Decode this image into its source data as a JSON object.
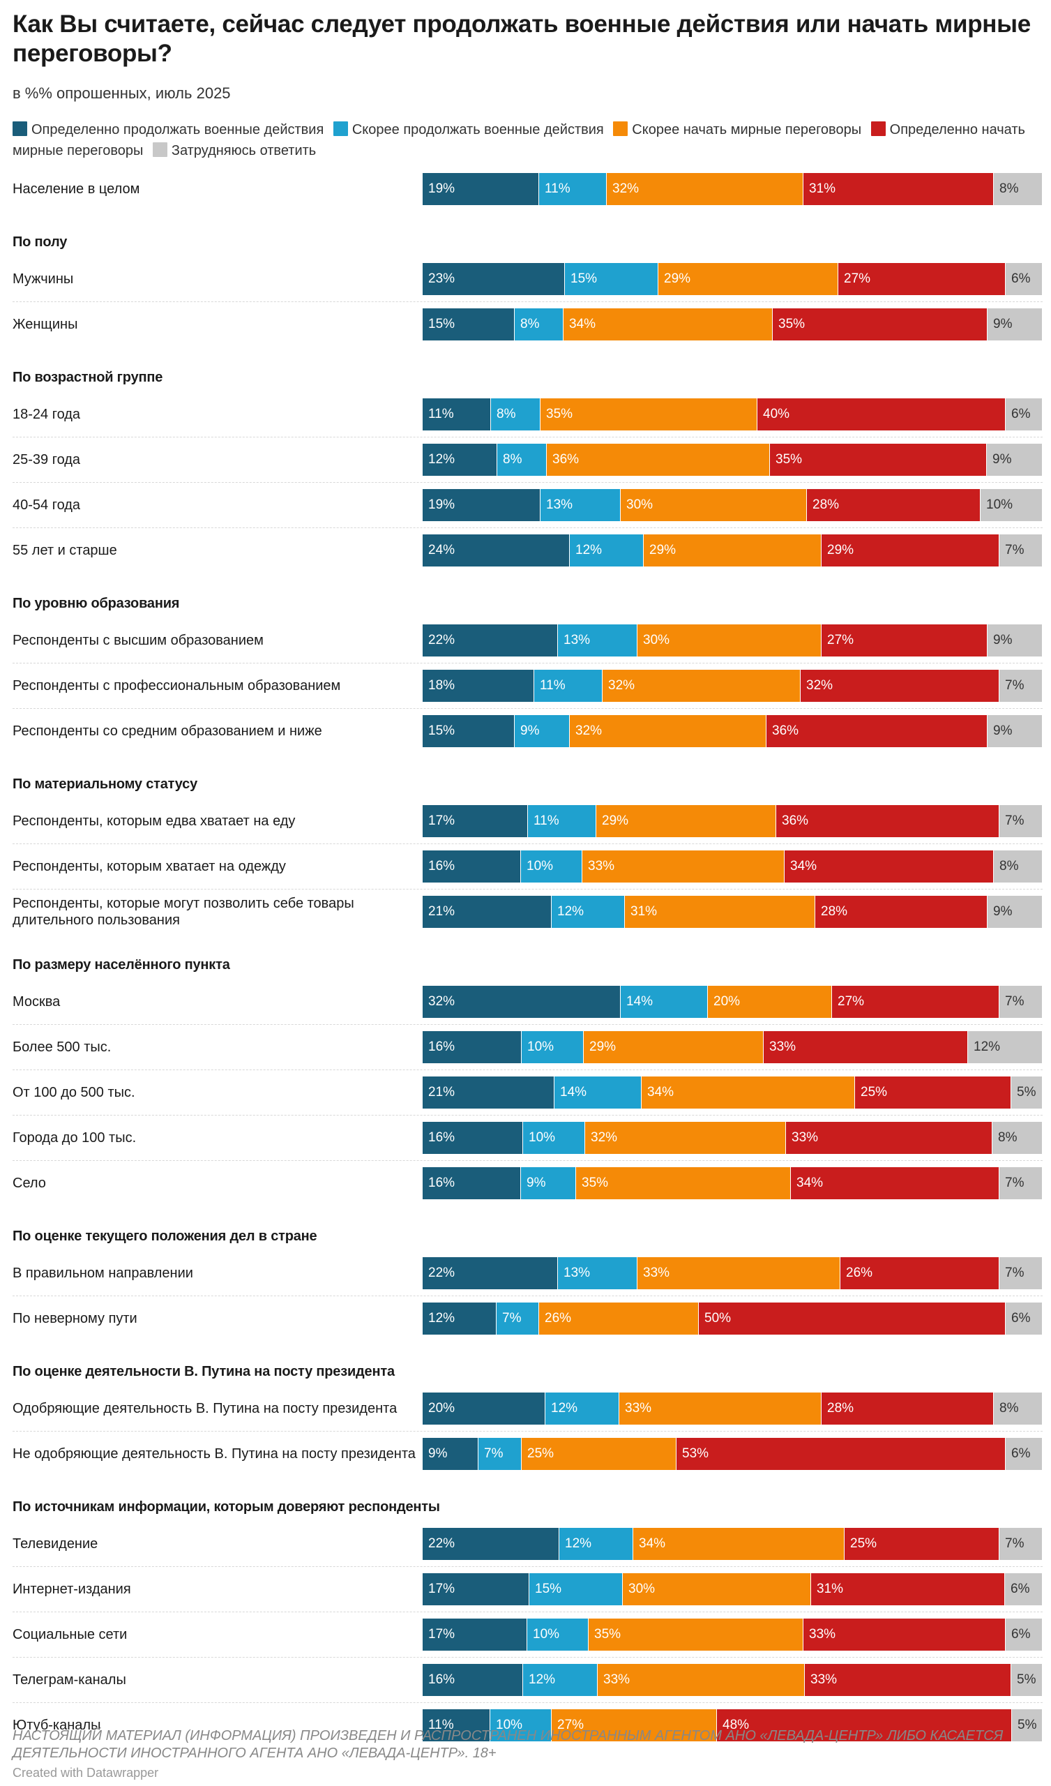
{
  "title": "Как Вы считаете, сейчас следует продолжать военные действия или начать мирные переговоры?",
  "subtitle": "в %% опрошенных, июль 2025",
  "legend": [
    {
      "label": "Определенно продолжать военные действия",
      "color": "#1a5d7a"
    },
    {
      "label": "Скорее продолжать военные действия",
      "color": "#1fa1cf"
    },
    {
      "label": "Скорее начать мирные переговоры",
      "color": "#f58a07"
    },
    {
      "label": "Определенно начать мирные переговоры",
      "color": "#c91d1d"
    },
    {
      "label": "Затрудняюсь ответить",
      "color": "#c8c8c8"
    }
  ],
  "footer": {
    "disclaimer": "НАСТОЯЩИЙ МАТЕРИАЛ (ИНФОРМАЦИЯ) ПРОИЗВЕДЕН И РАСПРОСТРАНЕН ИНОСТРАННЫМ АГЕНТОМ АНО «ЛЕВАДА-ЦЕНТР» ЛИБО КАСАЕТСЯ ДЕЯТЕЛЬНОСТИ ИНОСТРАННОГО АГЕНТА АНО «ЛЕВАДА-ЦЕНТР». 18+",
    "credit": "Created with Datawrapper"
  },
  "chart_data": {
    "type": "bar",
    "orientation": "horizontal",
    "stacked": "100%",
    "unit": "%",
    "series": [
      {
        "name": "Определенно продолжать военные действия",
        "color": "#1a5d7a"
      },
      {
        "name": "Скорее продолжать военные действия",
        "color": "#1fa1cf"
      },
      {
        "name": "Скорее начать мирные переговоры",
        "color": "#f58a07"
      },
      {
        "name": "Определенно начать мирные переговоры",
        "color": "#c91d1d"
      },
      {
        "name": "Затрудняюсь ответить",
        "color": "#c8c8c8"
      }
    ],
    "groups": [
      {
        "title": "",
        "rows": [
          {
            "label": "Население в целом",
            "values": [
              19,
              11,
              32,
              31,
              8
            ]
          }
        ]
      },
      {
        "title": "По полу",
        "rows": [
          {
            "label": "Мужчины",
            "values": [
              23,
              15,
              29,
              27,
              6
            ]
          },
          {
            "label": "Женщины",
            "values": [
              15,
              8,
              34,
              35,
              9
            ]
          }
        ]
      },
      {
        "title": "По возрастной группе",
        "rows": [
          {
            "label": "18-24 года",
            "values": [
              11,
              8,
              35,
              40,
              6
            ]
          },
          {
            "label": "25-39 года",
            "values": [
              12,
              8,
              36,
              35,
              9
            ]
          },
          {
            "label": "40-54 года",
            "values": [
              19,
              13,
              30,
              28,
              10
            ]
          },
          {
            "label": "55 лет и старше",
            "values": [
              24,
              12,
              29,
              29,
              7
            ]
          }
        ]
      },
      {
        "title": "По уровню образования",
        "rows": [
          {
            "label": "Респонденты с высшим образованием",
            "values": [
              22,
              13,
              30,
              27,
              9
            ]
          },
          {
            "label": "Респонденты с профессиональным образованием",
            "values": [
              18,
              11,
              32,
              32,
              7
            ]
          },
          {
            "label": "Респонденты со средним образованием и ниже",
            "values": [
              15,
              9,
              32,
              36,
              9
            ]
          }
        ]
      },
      {
        "title": "По материальному статусу",
        "rows": [
          {
            "label": "Респонденты, которым едва хватает на еду",
            "values": [
              17,
              11,
              29,
              36,
              7
            ]
          },
          {
            "label": "Респонденты, которым хватает на одежду",
            "values": [
              16,
              10,
              33,
              34,
              8
            ]
          },
          {
            "label": "Респонденты, которые могут позволить себе товары длительного пользования",
            "values": [
              21,
              12,
              31,
              28,
              9
            ]
          }
        ]
      },
      {
        "title": "По размеру населённого пункта",
        "rows": [
          {
            "label": "Москва",
            "values": [
              32,
              14,
              20,
              27,
              7
            ]
          },
          {
            "label": "Более 500 тыс.",
            "values": [
              16,
              10,
              29,
              33,
              12
            ]
          },
          {
            "label": "От 100 до 500 тыс.",
            "values": [
              21,
              14,
              34,
              25,
              5
            ]
          },
          {
            "label": "Города до 100 тыс.",
            "values": [
              16,
              10,
              32,
              33,
              8
            ]
          },
          {
            "label": "Село",
            "values": [
              16,
              9,
              35,
              34,
              7
            ]
          }
        ]
      },
      {
        "title": "По оценке текущего положения дел в стране",
        "rows": [
          {
            "label": "В правильном направлении",
            "values": [
              22,
              13,
              33,
              26,
              7
            ]
          },
          {
            "label": "По неверному пути",
            "values": [
              12,
              7,
              26,
              50,
              6
            ]
          }
        ]
      },
      {
        "title": "По оценке деятельности В. Путина на посту президента",
        "rows": [
          {
            "label": "Одобряющие деятельность В. Путина на посту президента",
            "values": [
              20,
              12,
              33,
              28,
              8
            ]
          },
          {
            "label": "Не одобряющие деятельность В. Путина на посту президента",
            "values": [
              9,
              7,
              25,
              53,
              6
            ]
          }
        ]
      },
      {
        "title": "По источникам информации, которым доверяют респонденты",
        "rows": [
          {
            "label": "Телевидение",
            "values": [
              22,
              12,
              34,
              25,
              7
            ]
          },
          {
            "label": "Интернет-издания",
            "values": [
              17,
              15,
              30,
              31,
              6
            ]
          },
          {
            "label": "Социальные сети",
            "values": [
              17,
              10,
              35,
              33,
              6
            ]
          },
          {
            "label": "Телеграм-каналы",
            "values": [
              16,
              12,
              33,
              33,
              5
            ]
          },
          {
            "label": "Ютуб-каналы",
            "values": [
              11,
              10,
              27,
              48,
              5
            ]
          }
        ]
      }
    ]
  }
}
